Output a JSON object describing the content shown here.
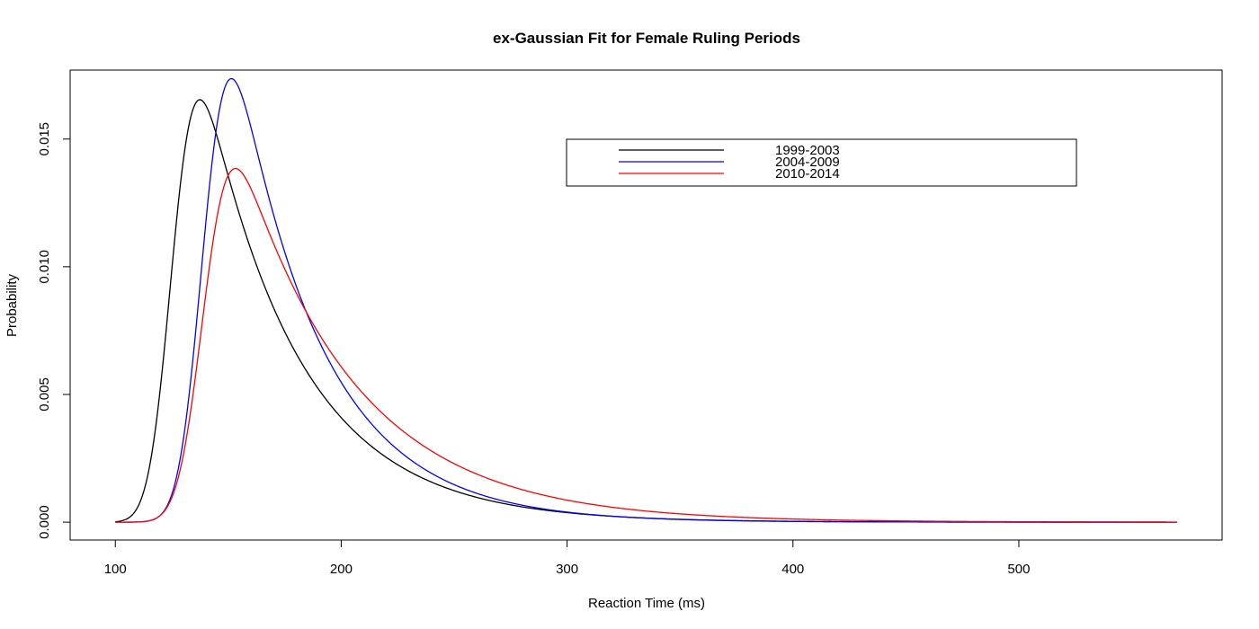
{
  "chart_data": {
    "type": "line",
    "title": "ex-Gaussian Fit for Female Ruling Periods",
    "xlabel": "Reaction Time (ms)",
    "ylabel": "Probability",
    "xlim": [
      80,
      590
    ],
    "ylim": [
      -0.0007,
      0.0177
    ],
    "xticks": [
      100,
      200,
      300,
      400,
      500
    ],
    "xtick_labels": [
      "100",
      "200",
      "300",
      "400",
      "500"
    ],
    "yticks": [
      0.0,
      0.005,
      0.01,
      0.015
    ],
    "ytick_labels": [
      "0.000",
      "0.005",
      "0.010",
      "0.015"
    ],
    "grid": false,
    "legend_position": "top-right",
    "series": [
      {
        "name": "1999-2003",
        "color": "#000000",
        "fit": {
          "mu": 125.5,
          "sigma": 8.05,
          "tau": 41.7
        },
        "x_range": [
          100,
          570
        ]
      },
      {
        "name": "2004-2009",
        "color": "#0000ff",
        "fit": {
          "mu": 139.4,
          "sigma": 8.5,
          "tau": 38.0
        },
        "x_range": [
          100,
          570
        ]
      },
      {
        "name": "2010-2014",
        "color": "#ff0000",
        "fit": {
          "mu": 139.5,
          "sigma": 8.95,
          "tau": 51.2
        },
        "x_range": [
          100,
          570
        ]
      }
    ]
  }
}
